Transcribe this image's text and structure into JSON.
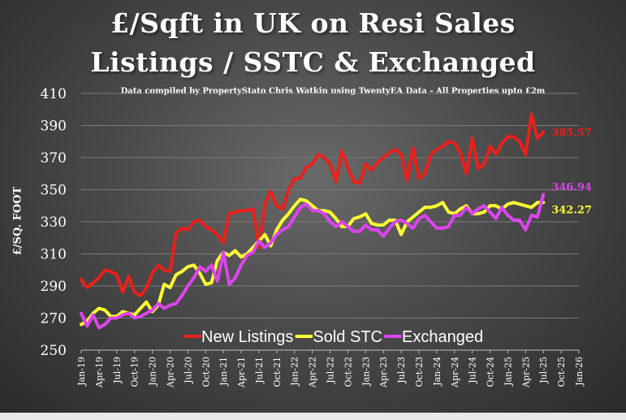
{
  "title_line1": "£/Sqft in UK on Resi Sales",
  "title_line2": "Listings / SSTC & Exchanged",
  "subtitle": "Data compiled by PropertyStato Chris Watkin using TwentyEA Data - All Properties upto £2m",
  "colors": {
    "new_listings": "#e8211b",
    "sold_stc": "#ffff33",
    "exchanged": "#dd44ee",
    "text": "#ffffff"
  },
  "chart_data": {
    "type": "line",
    "ylabel": "£/SQ. FOOT",
    "xlabel": "",
    "ylim": [
      250,
      410
    ],
    "y_ticks": [
      250,
      270,
      290,
      310,
      330,
      350,
      370,
      390,
      410
    ],
    "x_ticks": [
      "Jan-19",
      "Apr-19",
      "Jul-19",
      "Oct-19",
      "Jan-20",
      "Apr-20",
      "Jul-20",
      "Oct-20",
      "Jan-21",
      "Apr-21",
      "Jul-21",
      "Oct-21",
      "Jan-22",
      "Apr-22",
      "Jul-22",
      "Oct-22",
      "Jan-23",
      "Apr-23",
      "Jul-23",
      "Oct-23",
      "Jan-24",
      "Apr-24",
      "Jul-24",
      "Oct-24",
      "Jan-25",
      "Apr-25",
      "Jul-25",
      "Oct-25",
      "Jan-26"
    ],
    "legend_position": "bottom-center",
    "series": [
      {
        "name": "New Listings",
        "color": "#e8211b",
        "last_label": "385.57",
        "values": [
          294,
          289,
          292,
          295,
          300,
          299,
          297,
          286,
          296,
          286,
          284,
          289,
          298,
          303,
          300,
          299,
          323,
          326,
          325,
          330,
          331,
          327,
          325,
          322,
          317,
          335,
          336,
          337,
          337,
          338,
          314,
          341,
          349,
          340,
          338,
          350,
          357,
          357,
          364,
          366,
          372,
          370,
          366,
          355,
          374,
          364,
          355,
          354,
          366,
          362,
          367,
          370,
          373,
          375,
          372,
          356,
          376,
          357,
          360,
          372,
          375,
          377,
          380,
          379,
          373,
          360,
          382,
          363,
          366,
          377,
          372,
          379,
          383,
          383,
          380,
          372,
          397,
          382,
          386
        ]
      },
      {
        "name": "Sold STC",
        "color": "#ffff33",
        "last_label": "342.27",
        "values": [
          266,
          268,
          273,
          276,
          275,
          271,
          271,
          274,
          273,
          272,
          276,
          280,
          274,
          278,
          291,
          289,
          297,
          299,
          302,
          303,
          298,
          291,
          292,
          306,
          311,
          309,
          312,
          308,
          310,
          314,
          318,
          322,
          315,
          325,
          331,
          335,
          340,
          344,
          343,
          340,
          337,
          337,
          336,
          332,
          327,
          327,
          332,
          333,
          335,
          329,
          328,
          328,
          331,
          331,
          322,
          330,
          333,
          336,
          339,
          339,
          340,
          342,
          336,
          335,
          338,
          340,
          335,
          335,
          336,
          340,
          340,
          338,
          341,
          342,
          341,
          340,
          339,
          342,
          342
        ]
      },
      {
        "name": "Exchanged",
        "color": "#dd44ee",
        "last_label": "346.94",
        "values": [
          273,
          265,
          272,
          264,
          266,
          270,
          270,
          272,
          273,
          270,
          271,
          273,
          275,
          279,
          276,
          278,
          279,
          284,
          290,
          295,
          302,
          299,
          303,
          293,
          311,
          291,
          295,
          303,
          309,
          311,
          318,
          314,
          317,
          322,
          325,
          327,
          333,
          339,
          341,
          337,
          337,
          335,
          330,
          327,
          330,
          327,
          324,
          324,
          328,
          325,
          325,
          321,
          326,
          330,
          331,
          329,
          326,
          332,
          334,
          330,
          326,
          326,
          327,
          334,
          334,
          339,
          335,
          338,
          340,
          336,
          332,
          339,
          334,
          331,
          331,
          325,
          334,
          333,
          346.94
        ]
      }
    ]
  }
}
